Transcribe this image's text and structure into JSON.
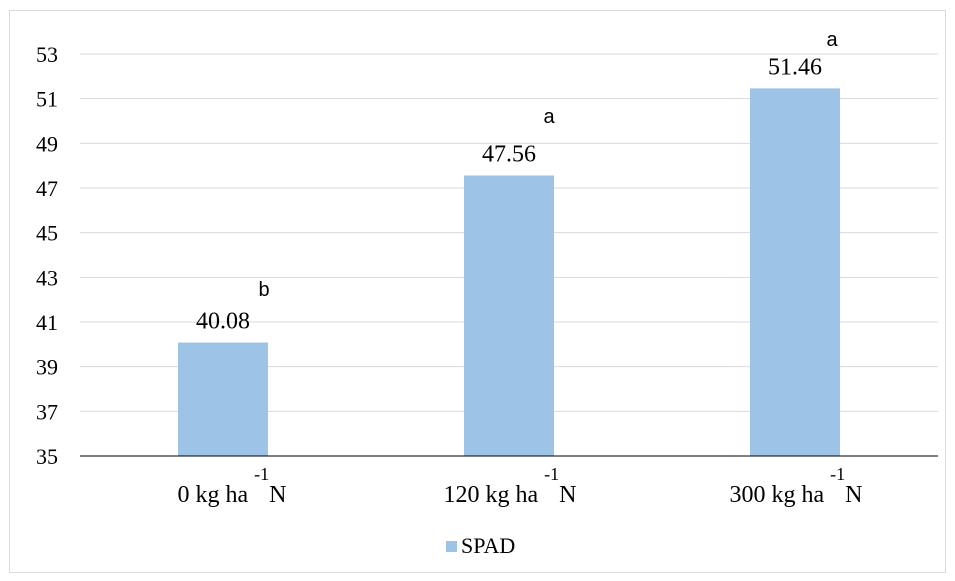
{
  "chart_data": {
    "type": "bar",
    "categories": [
      {
        "prefix": "0 kg ha",
        "sup": "-1",
        "suffix": "N"
      },
      {
        "prefix": "120 kg ha",
        "sup": "-1",
        "suffix": "N"
      },
      {
        "prefix": "300 kg ha",
        "sup": "-1",
        "suffix": "N"
      }
    ],
    "series": [
      {
        "name": "SPAD",
        "values": [
          40.08,
          47.56,
          51.46
        ],
        "color": "#9dc3e6"
      }
    ],
    "data_labels": [
      "40.08",
      "47.56",
      "51.46"
    ],
    "significance_letters": [
      "b",
      "a",
      "a"
    ],
    "ylim": [
      35,
      53
    ],
    "yticks": [
      35,
      37,
      39,
      41,
      43,
      45,
      47,
      49,
      51,
      53
    ],
    "grid": true,
    "legend_position": "bottom",
    "title": "",
    "xlabel": "",
    "ylabel": ""
  },
  "colors": {
    "bar": "#9dc3e6",
    "grid": "#d9d9d9",
    "frame": "#d9d9d9",
    "axis": "#000000"
  }
}
